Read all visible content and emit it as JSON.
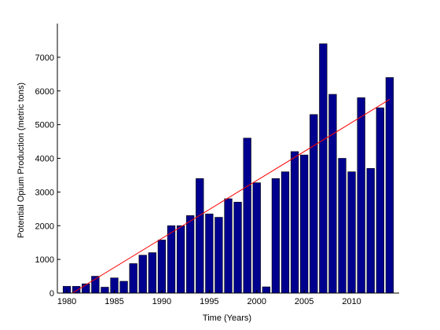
{
  "chart_data": {
    "type": "bar",
    "title": "",
    "xlabel": "Time (Years)",
    "ylabel": "Potential Opium Production (metric tons)",
    "xlim": [
      1979,
      2015
    ],
    "ylim": [
      0,
      8000
    ],
    "xticks": [
      1980,
      1985,
      1990,
      1995,
      2000,
      2005,
      2010
    ],
    "yticks": [
      0,
      1000,
      2000,
      3000,
      4000,
      5000,
      6000,
      7000
    ],
    "grid": false,
    "bar_color": "#00008f",
    "x": [
      1980,
      1981,
      1982,
      1983,
      1984,
      1985,
      1986,
      1987,
      1988,
      1989,
      1990,
      1991,
      1992,
      1993,
      1994,
      1995,
      1996,
      1997,
      1998,
      1999,
      2000,
      2001,
      2002,
      2003,
      2004,
      2005,
      2006,
      2007,
      2008,
      2009,
      2010,
      2011,
      2012,
      2013,
      2014
    ],
    "values": [
      200,
      200,
      275,
      500,
      175,
      450,
      350,
      875,
      1125,
      1200,
      1575,
      2000,
      2000,
      2300,
      3400,
      2350,
      2250,
      2800,
      2700,
      4600,
      3275,
      185,
      3400,
      3600,
      4200,
      4100,
      5300,
      7400,
      5900,
      4000,
      3600,
      5800,
      3700,
      5500,
      6400
    ],
    "trend_line": {
      "color": "#ff0000",
      "x": [
        1980,
        2014
      ],
      "y": [
        -100,
        5750
      ]
    }
  }
}
